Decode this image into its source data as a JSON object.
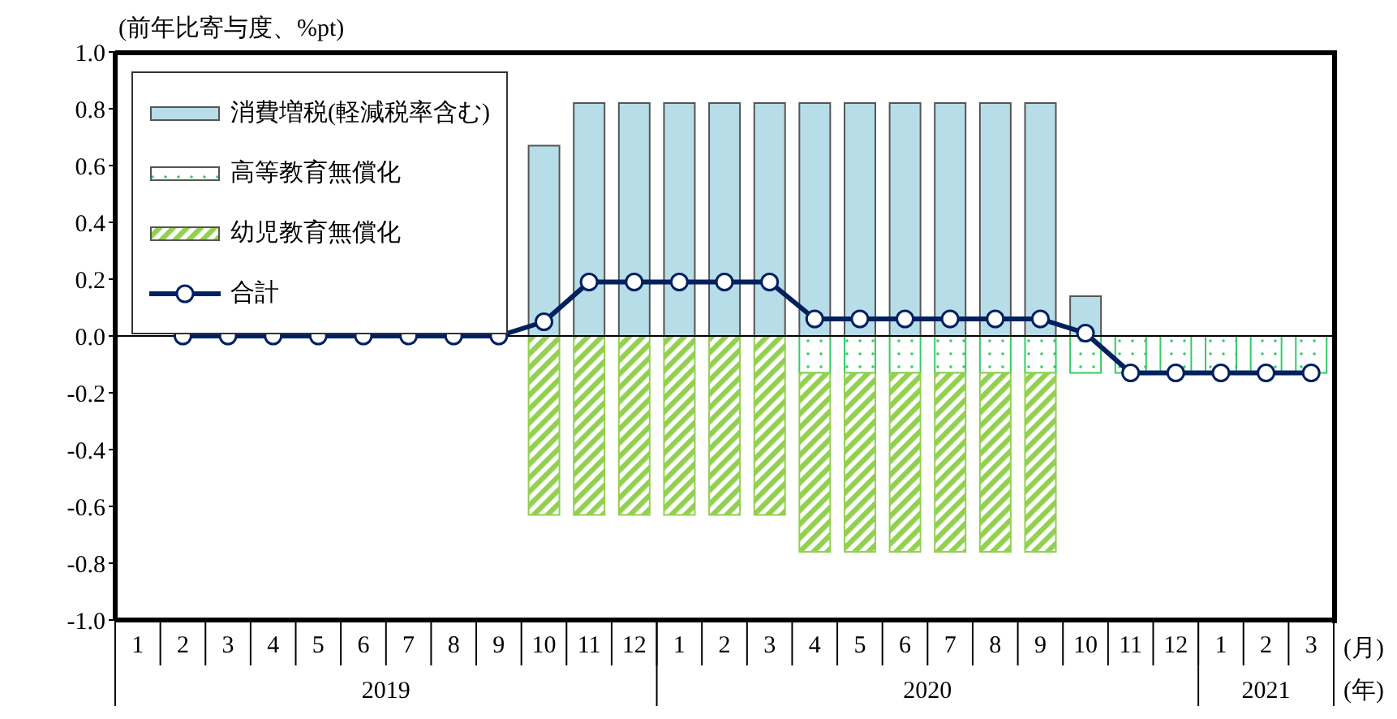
{
  "chart_data": {
    "type": "bar",
    "stacked": true,
    "ylabel": "(前年比寄与度、%pt)",
    "xlabel": "(月)",
    "categories": [
      "1",
      "2",
      "3",
      "4",
      "5",
      "6",
      "7",
      "8",
      "9",
      "10",
      "11",
      "12",
      "1",
      "2",
      "3",
      "4",
      "5",
      "6",
      "7",
      "8",
      "9",
      "10",
      "11",
      "12",
      "1",
      "2",
      "3"
    ],
    "annotations": [
      "2019",
      "2020",
      "2021",
      "(年)"
    ],
    "series": [
      {
        "name": "消費増税(軽減税率含む)",
        "color": "#b7dde8",
        "values": [
          null,
          null,
          null,
          null,
          null,
          null,
          null,
          null,
          null,
          0.67,
          0.82,
          0.82,
          0.82,
          0.82,
          0.82,
          0.82,
          0.82,
          0.82,
          0.82,
          0.82,
          0.82,
          0.14,
          null,
          null,
          null,
          null,
          null
        ]
      },
      {
        "name": "高等教育無償化",
        "color": "#33cc66",
        "values": [
          null,
          null,
          null,
          null,
          null,
          null,
          null,
          null,
          null,
          null,
          null,
          null,
          null,
          null,
          null,
          -0.13,
          -0.13,
          -0.13,
          -0.13,
          -0.13,
          -0.13,
          -0.13,
          -0.13,
          -0.13,
          -0.13,
          -0.13,
          -0.13
        ]
      },
      {
        "name": "幼児教育無償化",
        "color": "#92d050",
        "values": [
          null,
          null,
          null,
          null,
          null,
          null,
          null,
          null,
          null,
          -0.63,
          -0.63,
          -0.63,
          -0.63,
          -0.63,
          -0.63,
          -0.63,
          -0.63,
          -0.63,
          -0.63,
          -0.63,
          -0.63,
          null,
          null,
          null,
          null,
          null,
          null
        ]
      },
      {
        "name": "合計",
        "type": "line",
        "color": "#002060",
        "values": [
          null,
          0,
          0,
          0,
          0,
          0,
          0,
          0,
          0,
          0.05,
          0.19,
          0.19,
          0.19,
          0.19,
          0.19,
          0.06,
          0.06,
          0.06,
          0.06,
          0.06,
          0.06,
          0.01,
          -0.13,
          -0.13,
          -0.13,
          -0.13,
          -0.13
        ]
      }
    ],
    "ylim": [
      -1,
      1
    ],
    "yticks": [
      {
        "value": -1,
        "label": "-1.0"
      },
      {
        "value": -0.8,
        "label": "-0.8"
      },
      {
        "value": -0.6,
        "label": "-0.6"
      },
      {
        "value": -0.4,
        "label": "-0.4"
      },
      {
        "value": -0.2,
        "label": "-0.2"
      },
      {
        "value": 0,
        "label": "0.0"
      },
      {
        "value": 0.2,
        "label": "0.2"
      },
      {
        "value": 0.4,
        "label": "0.4"
      },
      {
        "value": 0.6,
        "label": "0.6"
      },
      {
        "value": 0.8,
        "label": "0.8"
      },
      {
        "value": 1,
        "label": "1.0"
      }
    ],
    "ref_lines": [
      {
        "axis": "y",
        "value": 0,
        "color": "#000000",
        "line_style": "solid"
      }
    ],
    "grid": false,
    "legend": "top left",
    "marker": "circle",
    "line_style": "solid"
  }
}
